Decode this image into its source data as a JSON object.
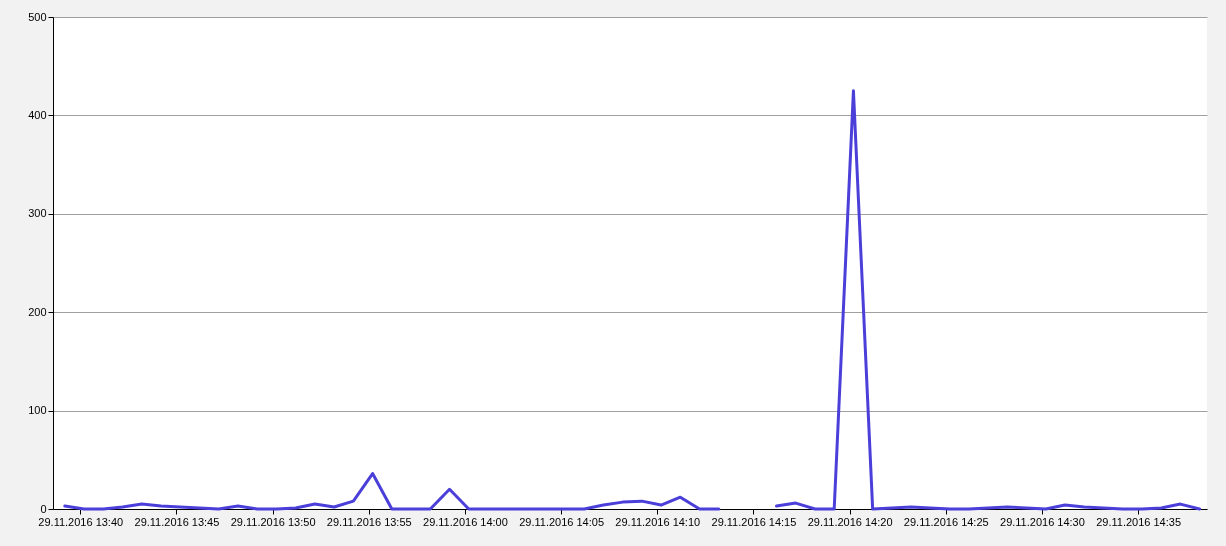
{
  "chart_data": {
    "type": "line",
    "x": [
      "2016-11-29T13:39:12",
      "2016-11-29T13:40:12",
      "2016-11-29T13:41:12",
      "2016-11-29T13:42:12",
      "2016-11-29T13:43:12",
      "2016-11-29T13:44:12",
      "2016-11-29T13:45:12",
      "2016-11-29T13:46:12",
      "2016-11-29T13:47:12",
      "2016-11-29T13:48:12",
      "2016-11-29T13:49:12",
      "2016-11-29T13:50:12",
      "2016-11-29T13:51:12",
      "2016-11-29T13:52:12",
      "2016-11-29T13:53:12",
      "2016-11-29T13:54:12",
      "2016-11-29T13:55:12",
      "2016-11-29T13:56:12",
      "2016-11-29T13:57:12",
      "2016-11-29T13:58:12",
      "2016-11-29T13:59:12",
      "2016-11-29T14:00:12",
      "2016-11-29T14:01:12",
      "2016-11-29T14:02:12",
      "2016-11-29T14:03:12",
      "2016-11-29T14:04:12",
      "2016-11-29T14:05:12",
      "2016-11-29T14:06:12",
      "2016-11-29T14:07:12",
      "2016-11-29T14:08:12",
      "2016-11-29T14:09:12",
      "2016-11-29T14:10:12",
      "2016-11-29T14:11:12",
      "2016-11-29T14:12:12",
      "2016-11-29T14:13:12",
      "2016-11-29T14:14:12",
      "2016-11-29T14:15:12",
      "2016-11-29T14:16:12",
      "2016-11-29T14:17:12",
      "2016-11-29T14:18:12",
      "2016-11-29T14:19:12",
      "2016-11-29T14:20:12",
      "2016-11-29T14:21:12",
      "2016-11-29T14:22:12",
      "2016-11-29T14:23:12",
      "2016-11-29T14:24:12",
      "2016-11-29T14:25:12",
      "2016-11-29T14:26:12",
      "2016-11-29T14:27:12",
      "2016-11-29T14:28:12",
      "2016-11-29T14:29:12",
      "2016-11-29T14:30:12",
      "2016-11-29T14:31:12",
      "2016-11-29T14:32:12",
      "2016-11-29T14:33:12",
      "2016-11-29T14:34:12",
      "2016-11-29T14:35:12",
      "2016-11-29T14:36:12",
      "2016-11-29T14:37:12",
      "2016-11-29T14:38:12"
    ],
    "series": [
      {
        "color": "#4b3fd9",
        "values": [
          3,
          0,
          0,
          2,
          5,
          3,
          2,
          1,
          0,
          3,
          0,
          0,
          1,
          5,
          2,
          8,
          36,
          0,
          0,
          0,
          20,
          0,
          0,
          0,
          0,
          0,
          0,
          0,
          4,
          7,
          8,
          4,
          12,
          0,
          0,
          null,
          null,
          3,
          6,
          0,
          0,
          425,
          0,
          1,
          2,
          1,
          0,
          0,
          1,
          2,
          1,
          0,
          4,
          2,
          1,
          0,
          0,
          1,
          5,
          0
        ]
      }
    ],
    "xlim": [
      "2016-11-29T13:38:35",
      "2016-11-29T14:38:35"
    ],
    "xticks": [
      {
        "value": "2016-11-29T13:40",
        "label": "29.11.2016 13:40"
      },
      {
        "value": "2016-11-29T13:45",
        "label": "29.11.2016 13:45"
      },
      {
        "value": "2016-11-29T13:50",
        "label": "29.11.2016 13:50"
      },
      {
        "value": "2016-11-29T13:55",
        "label": "29.11.2016 13:55"
      },
      {
        "value": "2016-11-29T14:00",
        "label": "29.11.2016 14:00"
      },
      {
        "value": "2016-11-29T14:05",
        "label": "29.11.2016 14:05"
      },
      {
        "value": "2016-11-29T14:10",
        "label": "29.11.2016 14:10"
      },
      {
        "value": "2016-11-29T14:15",
        "label": "29.11.2016 14:15"
      },
      {
        "value": "2016-11-29T14:20",
        "label": "29.11.2016 14:20"
      },
      {
        "value": "2016-11-29T14:25",
        "label": "29.11.2016 14:25"
      },
      {
        "value": "2016-11-29T14:30",
        "label": "29.11.2016 14:30"
      },
      {
        "value": "2016-11-29T14:35",
        "label": "29.11.2016 14:35"
      }
    ],
    "ylim": [
      0,
      500
    ],
    "yticks": [
      0,
      100,
      200,
      300,
      400,
      500
    ],
    "grid": "y",
    "line_style": "solid"
  }
}
